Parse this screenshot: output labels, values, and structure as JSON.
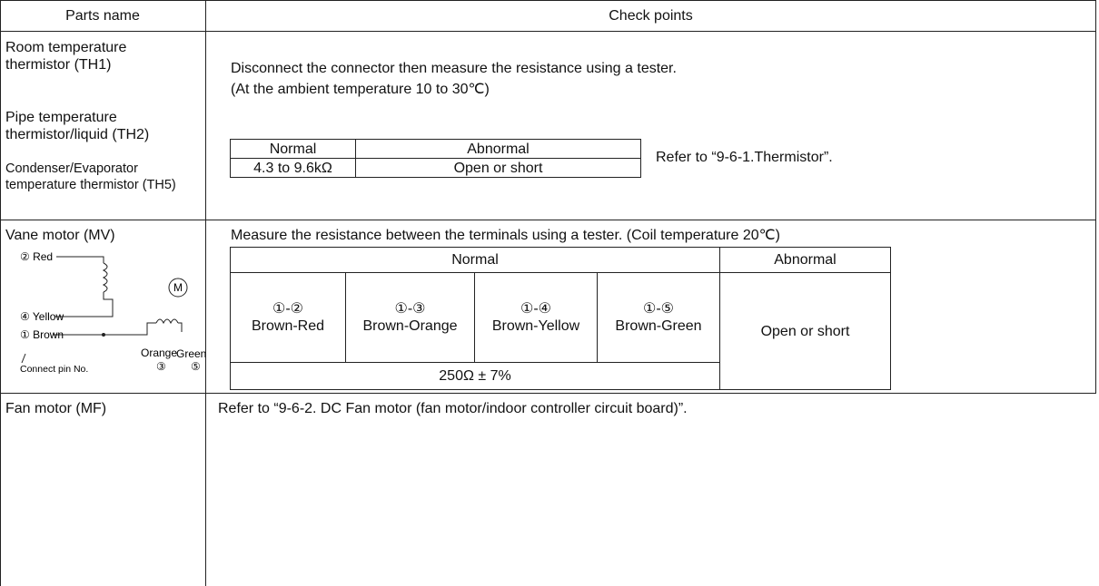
{
  "table": {
    "header": [
      "Parts name",
      "Check points"
    ],
    "rows": [
      {
        "parts": [
          "Room temperature thermistor (TH1)",
          "Pipe temperature thermistor/liquid (TH2)",
          "Condenser/Evaporator temperature thermistor (TH5)"
        ],
        "check": [
          "Disconnect the connector then measure the resistance using a tester.",
          "(At the ambient temperature 10 to 30℃)"
        ],
        "subtable": {
          "header": [
            "Normal",
            "Abnormal"
          ],
          "row": [
            "4.3 to 9.6kΩ",
            "Open or short"
          ]
        },
        "note": "Refer to “9-6-1.Thermistor”."
      },
      {
        "parts": [
          "Vane motor (MV)"
        ],
        "diagram": {
          "red": "② Red",
          "motor": "M",
          "yellow": "④ Yellow",
          "brown": "① Brown",
          "orange": "Orange",
          "green": "Green",
          "pin3": "③",
          "pin5": "⑤",
          "caption": "Connect pin No."
        },
        "check": [
          "Measure the resistance between the terminals using a tester. (Coil temperature 20℃)"
        ],
        "subtable": {
          "header": [
            "Normal",
            "Abnormal"
          ],
          "pins": [
            [
              "①-②",
              "Brown-Red"
            ],
            [
              "①-③",
              "Brown-Orange"
            ],
            [
              "①-④",
              "Brown-Yellow"
            ],
            [
              "①-⑤",
              "Brown-Green"
            ]
          ],
          "value": "250Ω ± 7%",
          "abnormal": "Open or short"
        }
      },
      {
        "parts": [
          "Fan motor (MF)"
        ],
        "check": [
          "Refer to “9-6-2. DC Fan motor (fan motor/indoor controller circuit board)”."
        ]
      }
    ]
  }
}
